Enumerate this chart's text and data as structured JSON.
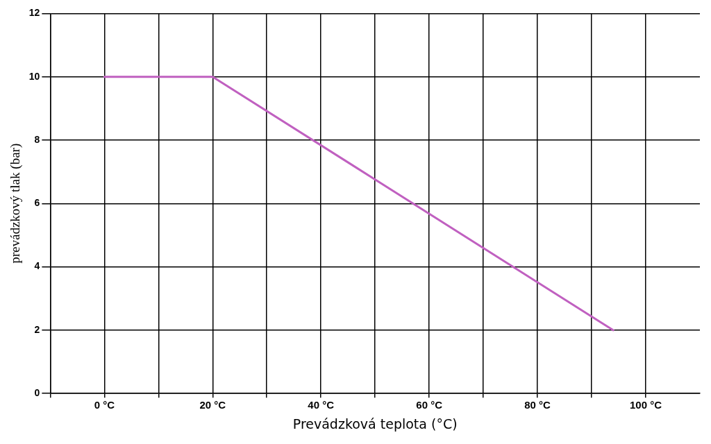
{
  "chart_data": {
    "type": "line",
    "xlabel": "Prevádzková teplota (°C)",
    "ylabel": "prevádzkový tlak (bar)",
    "x": [
      0,
      20,
      94
    ],
    "series": [
      {
        "color": "#c060c0",
        "values": [
          10,
          10,
          2
        ]
      }
    ],
    "xlim": [
      -10,
      110
    ],
    "xticks": [
      {
        "value": -10,
        "label": null
      },
      {
        "value": 0,
        "label": "0 °C"
      },
      {
        "value": 10,
        "label": null
      },
      {
        "value": 20,
        "label": "20 °C"
      },
      {
        "value": 30,
        "label": null
      },
      {
        "value": 40,
        "label": "40 °C"
      },
      {
        "value": 50,
        "label": null
      },
      {
        "value": 60,
        "label": "60 °C"
      },
      {
        "value": 70,
        "label": null
      },
      {
        "value": 80,
        "label": "80 °C"
      },
      {
        "value": 90,
        "label": null
      },
      {
        "value": 100,
        "label": "100 °C"
      }
    ],
    "ylim": [
      0,
      12
    ],
    "yticks": [
      0,
      2,
      4,
      6,
      8,
      10,
      12
    ],
    "grid": true,
    "legend": false,
    "marker": "none",
    "line_style": "solid"
  }
}
